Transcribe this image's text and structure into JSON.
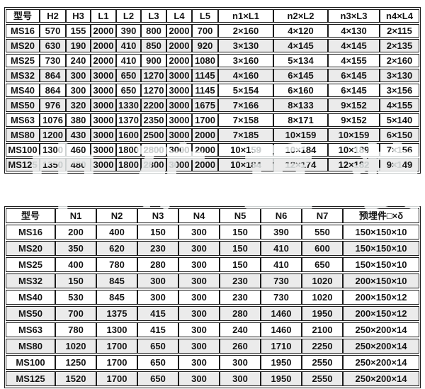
{
  "watermark": {
    "text": "中矿重装"
  },
  "colors": {
    "border": "#1c1c1c",
    "text": "#141414",
    "alt_row": "#ebebeb",
    "watermark": "#ccd0d0"
  },
  "table1": {
    "headers": [
      "型号",
      "H2",
      "H3",
      "L1",
      "L2",
      "L3",
      "L4",
      "L5",
      "n1×L1",
      "n2×L2",
      "n3×L3",
      "n4×L4"
    ],
    "rows": [
      [
        "MS16",
        "570",
        "155",
        "2000",
        "390",
        "800",
        "2000",
        "700",
        "2×160",
        "4×120",
        "4×130",
        "2×115"
      ],
      [
        "MS20",
        "630",
        "190",
        "2000",
        "410",
        "850",
        "2000",
        "920",
        "3×130",
        "4×145",
        "4×145",
        "2×135"
      ],
      [
        "MS25",
        "730",
        "240",
        "2000",
        "410",
        "900",
        "2000",
        "1080",
        "3×160",
        "5×134",
        "4×155",
        "2×160"
      ],
      [
        "MS32",
        "864",
        "300",
        "3000",
        "650",
        "1270",
        "3000",
        "1145",
        "4×160",
        "6×145",
        "6×145",
        "3×130"
      ],
      [
        "MS40",
        "864",
        "300",
        "3000",
        "650",
        "1270",
        "3000",
        "1145",
        "5×154",
        "6×160",
        "6×145",
        "3×156"
      ],
      [
        "MS50",
        "976",
        "320",
        "3000",
        "1330",
        "2200",
        "3000",
        "1675",
        "7×166",
        "8×133",
        "9×152",
        "4×155"
      ],
      [
        "MS63",
        "1076",
        "380",
        "3000",
        "1370",
        "2350",
        "3000",
        "1700",
        "7×158",
        "8×171",
        "9×152",
        "5×140"
      ],
      [
        "MS80",
        "1200",
        "430",
        "3000",
        "1600",
        "2500",
        "3000",
        "2000",
        "7×185",
        "10×159",
        "10×159",
        "6×150"
      ],
      [
        "MS100",
        "1300",
        "460",
        "3000",
        "1800",
        "2800",
        "3000",
        "2000",
        "10×159",
        "10×184",
        "10×189",
        "7×156"
      ],
      [
        "MS125",
        "1350",
        "480",
        "3000",
        "1800",
        "2800",
        "3000",
        "2000",
        "10×184",
        "12×174",
        "12×182",
        "9×149"
      ]
    ]
  },
  "table2": {
    "headers": [
      "型号",
      "N1",
      "N2",
      "N3",
      "N4",
      "N5",
      "N6",
      "N7",
      "预埋件□×δ"
    ],
    "rows": [
      [
        "MS16",
        "200",
        "400",
        "150",
        "300",
        "150",
        "390",
        "550",
        "150×150×10"
      ],
      [
        "MS20",
        "350",
        "620",
        "230",
        "300",
        "150",
        "410",
        "600",
        "150×150×10"
      ],
      [
        "MS25",
        "400",
        "780",
        "280",
        "300",
        "150",
        "410",
        "650",
        "150×150×10"
      ],
      [
        "MS32",
        "150",
        "845",
        "300",
        "300",
        "230",
        "730",
        "1020",
        "200×150×10"
      ],
      [
        "MS40",
        "530",
        "845",
        "300",
        "300",
        "230",
        "730",
        "1020",
        "200×150×12"
      ],
      [
        "MS50",
        "700",
        "1375",
        "415",
        "300",
        "280",
        "1460",
        "1950",
        "200×150×12"
      ],
      [
        "MS63",
        "780",
        "1300",
        "415",
        "300",
        "240",
        "1460",
        "2100",
        "250×200×14"
      ],
      [
        "MS80",
        "1020",
        "1700",
        "650",
        "300",
        "260",
        "1710",
        "2250",
        "250×200×14"
      ],
      [
        "MS100",
        "1250",
        "1700",
        "650",
        "300",
        "300",
        "1950",
        "2550",
        "250×200×14"
      ],
      [
        "MS125",
        "1520",
        "1700",
        "650",
        "300",
        "300",
        "1950",
        "2550",
        "250×200×14"
      ]
    ]
  }
}
